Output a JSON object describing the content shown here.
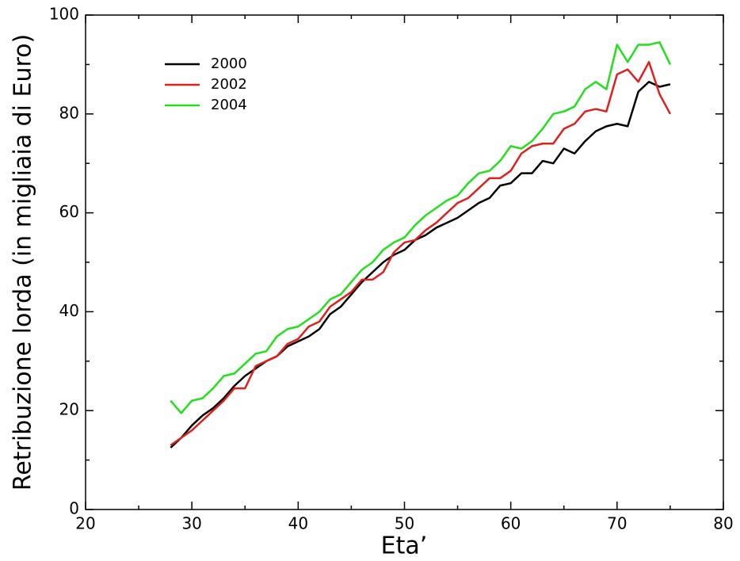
{
  "chart_data": {
    "type": "line",
    "xlabel": "Eta’",
    "ylabel": "Retribuzione lorda (in migliaia di Euro)",
    "x": [
      28,
      29,
      30,
      31,
      32,
      33,
      34,
      35,
      36,
      37,
      38,
      39,
      40,
      41,
      42,
      43,
      44,
      45,
      46,
      47,
      48,
      49,
      50,
      51,
      52,
      53,
      54,
      55,
      56,
      57,
      58,
      59,
      60,
      61,
      62,
      63,
      64,
      65,
      66,
      67,
      68,
      69,
      70,
      71,
      72,
      73,
      74,
      75
    ],
    "series": [
      {
        "name": "2000",
        "color": "#000000",
        "values": [
          12.5,
          14.5,
          17,
          19,
          20.5,
          22.5,
          25,
          27,
          28.5,
          30,
          31,
          33,
          34,
          35,
          36.5,
          39.5,
          41,
          43.5,
          46,
          48,
          50,
          51.5,
          52.5,
          54.5,
          55.5,
          57,
          58,
          59,
          60.5,
          62,
          63,
          65.5,
          66,
          68,
          68,
          70.5,
          70,
          73,
          72,
          74.5,
          76.5,
          77.5,
          78,
          77.5,
          84.5,
          86.5,
          85.5,
          86
        ]
      },
      {
        "name": "2002",
        "color": "#e0201c",
        "values": [
          13,
          14.5,
          16,
          18,
          20,
          22,
          24.5,
          24.5,
          29,
          30,
          31,
          33.5,
          34.5,
          37,
          38,
          41,
          42.5,
          44,
          46.5,
          46.5,
          48,
          52,
          54,
          54.5,
          56.5,
          58,
          60,
          62,
          63,
          65,
          67,
          67,
          68.5,
          72,
          73.5,
          74,
          74,
          77,
          78,
          80.5,
          81,
          80.5,
          88,
          89,
          86.5,
          90.5,
          84,
          80
        ]
      },
      {
        "name": "2004",
        "color": "#22e01c",
        "values": [
          22,
          19.5,
          22,
          22.5,
          24.5,
          27,
          27.5,
          29.5,
          31.5,
          32,
          35,
          36.5,
          37,
          38.5,
          40,
          42.5,
          43.5,
          46,
          48.5,
          50,
          52.5,
          54,
          55,
          57.5,
          59.5,
          61,
          62.5,
          63.5,
          66,
          68,
          68.5,
          70.5,
          73.5,
          73,
          74.5,
          77,
          80,
          80.5,
          81.5,
          85,
          86.5,
          85,
          94,
          90.5,
          94,
          94,
          94.5,
          90
        ]
      }
    ],
    "xlim": [
      20,
      80
    ],
    "xticks": [
      20,
      30,
      40,
      50,
      60,
      70,
      80
    ],
    "ylim": [
      0,
      100
    ],
    "yticks": [
      0,
      20,
      40,
      60,
      80,
      100
    ],
    "legend": "upper left"
  }
}
